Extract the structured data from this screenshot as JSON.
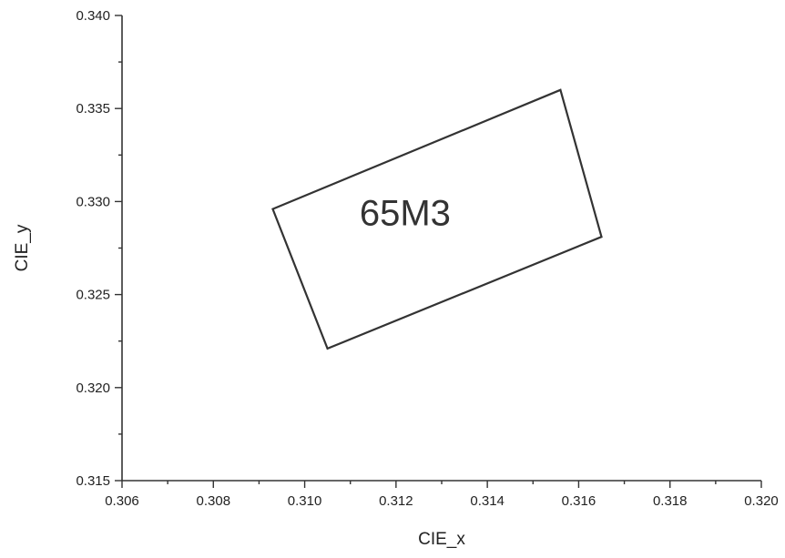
{
  "chart_data": {
    "type": "line",
    "title": "",
    "xlabel": "CIE_x",
    "ylabel": "CIE_y",
    "xlim": [
      0.306,
      0.32
    ],
    "ylim": [
      0.315,
      0.34
    ],
    "x_ticks": [
      "0.306",
      "0.308",
      "0.310",
      "0.312",
      "0.314",
      "0.316",
      "0.318",
      "0.320"
    ],
    "y_ticks": [
      "0.315",
      "0.320",
      "0.325",
      "0.330",
      "0.335",
      "0.340"
    ],
    "grid": false,
    "legend": "none",
    "series": [
      {
        "points": [
          [
            0.3093,
            0.3296
          ],
          [
            0.3156,
            0.336
          ],
          [
            0.3165,
            0.3281
          ],
          [
            0.3105,
            0.3221
          ]
        ],
        "closed": true,
        "color": "#333333"
      }
    ],
    "annotations": [
      {
        "text": "65M3",
        "x": 0.3122,
        "y": 0.3294
      }
    ]
  }
}
